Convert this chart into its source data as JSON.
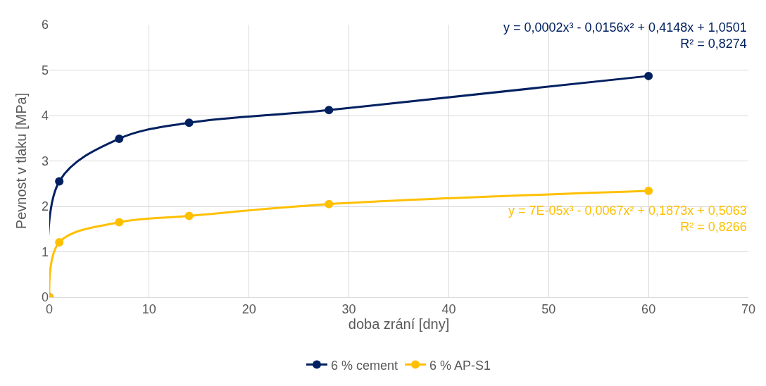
{
  "chart_data": {
    "type": "line",
    "xlabel": "doba zrání [dny]",
    "ylabel": "Pevnost v tlaku [MPa]",
    "x": [
      0,
      1,
      7,
      14,
      28,
      60
    ],
    "series": [
      {
        "name": "6 % cement",
        "color": "#002060",
        "values": [
          0,
          2.55,
          3.49,
          3.84,
          4.12,
          4.87
        ]
      },
      {
        "name": "6 % AP-S1",
        "color": "#ffc000",
        "values": [
          0,
          1.21,
          1.65,
          1.79,
          2.05,
          2.34
        ]
      }
    ],
    "annotations": [
      "y = 0,0002x³ - 0,0156x² + 0,4148x + 1,0501\nR² = 0,8274",
      "y = 7E-05x³ - 0,0067x² + 0,1873x + 0,5063\nR² = 0,8266"
    ],
    "xlim": [
      0,
      70
    ],
    "xticks": [
      0,
      10,
      20,
      30,
      40,
      50,
      60,
      70
    ],
    "ylim": [
      0,
      6
    ],
    "yticks": [
      0,
      1,
      2,
      3,
      4,
      5,
      6
    ],
    "grid": true,
    "legend": "bottom",
    "marker": "circle",
    "line_style": "solid"
  }
}
